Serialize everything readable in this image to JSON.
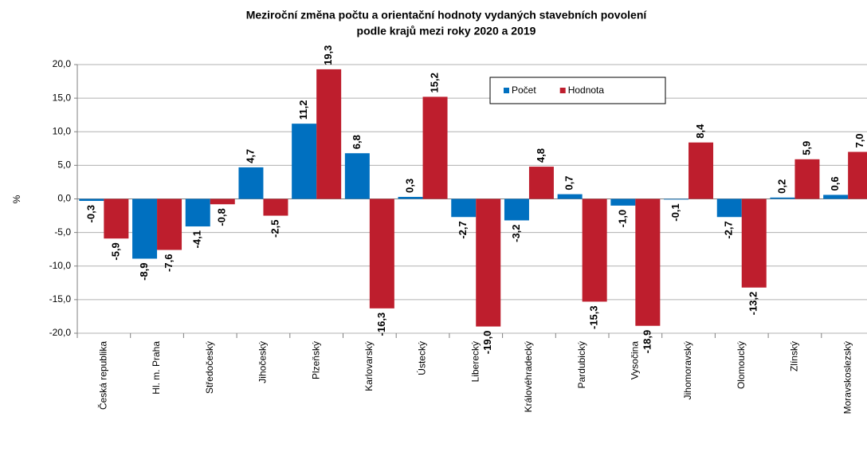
{
  "chart_data": {
    "type": "bar",
    "title": [
      "Meziroční změna počtu a orientační hodnoty vydaných stavebních povolení",
      "podle krajů mezi roky 2020 a 2019"
    ],
    "ylabel": "%",
    "categories": [
      "Česká republika",
      "Hl. m. Praha",
      "Středočeský",
      "Jihočeský",
      "Plzeňský",
      "Karlovarský",
      "Ústecký",
      "Liberecký",
      "Královéhradecký",
      "Pardubický",
      "Vysočina",
      "Jihomoravský",
      "Olomoucký",
      "Zlínský",
      "Moravskoslezský"
    ],
    "series": [
      {
        "name": "Počet",
        "color": "#0070c0",
        "label_color": "#2a7fc9",
        "values": [
          -0.3,
          -8.9,
          -4.1,
          4.7,
          11.2,
          6.8,
          0.3,
          -2.7,
          -3.2,
          0.7,
          -1.0,
          -0.1,
          -2.7,
          0.2,
          0.6
        ],
        "value_labels": [
          "-0,3",
          "-8,9",
          "-4,1",
          "4,7",
          "11,2",
          "6,8",
          "0,3",
          "-2,7",
          "-3,2",
          "0,7",
          "-1,0",
          "-0,1",
          "-2,7",
          "0,2",
          "0,6"
        ]
      },
      {
        "name": "Hodnota",
        "color": "#be1e2d",
        "label_color": "#c0202a",
        "values": [
          -5.9,
          -7.6,
          -0.8,
          -2.5,
          19.3,
          -16.3,
          15.2,
          -19.0,
          4.8,
          -15.3,
          -18.9,
          8.4,
          -13.2,
          5.9,
          7.0
        ],
        "value_labels": [
          "-5,9",
          "-7,6",
          "-0,8",
          "-2,5",
          "19,3",
          "-16,3",
          "15,2",
          "-19,0",
          "4,8",
          "-15,3",
          "-18,9",
          "8,4",
          "-13,2",
          "5,9",
          "7,0"
        ]
      }
    ],
    "ylim": [
      -20,
      20
    ],
    "yticks": [
      {
        "value": -20,
        "label": "-20,0"
      },
      {
        "value": -15,
        "label": "-15,0"
      },
      {
        "value": -10,
        "label": "-10,0"
      },
      {
        "value": -5,
        "label": "-5,0"
      },
      {
        "value": 0,
        "label": "0,0"
      },
      {
        "value": 5,
        "label": "5,0"
      },
      {
        "value": 10,
        "label": "10,0"
      },
      {
        "value": 15,
        "label": "15,0"
      },
      {
        "value": 20,
        "label": "20,0"
      }
    ],
    "grid": true,
    "legend": "top"
  }
}
